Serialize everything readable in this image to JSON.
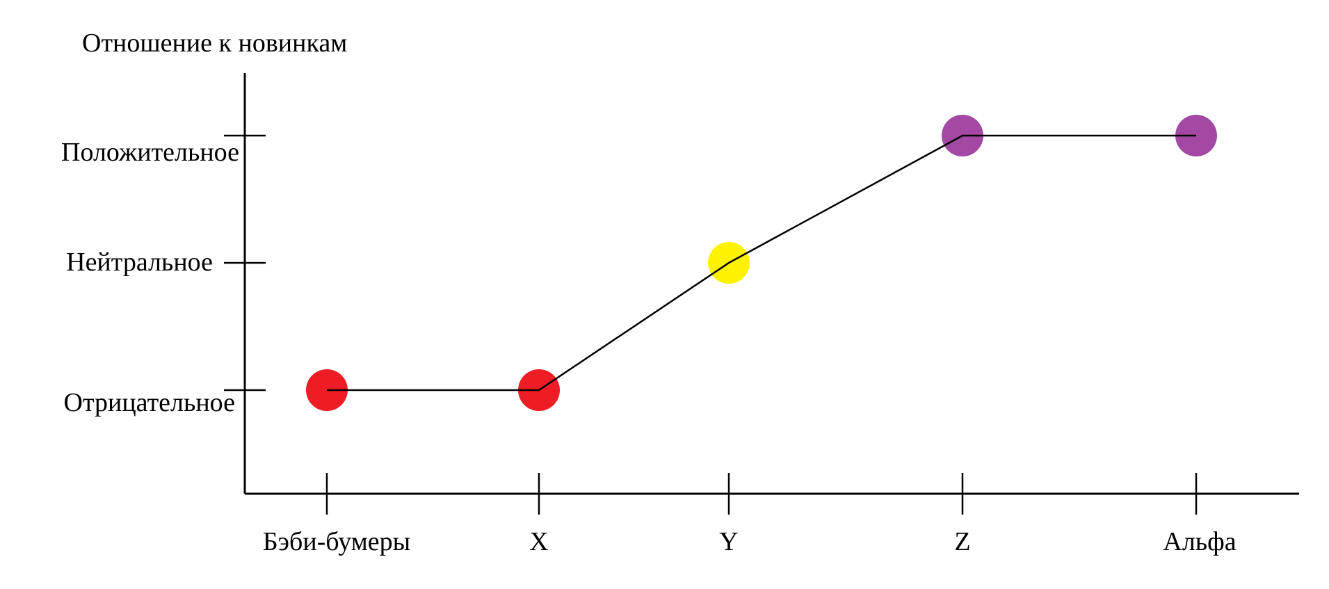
{
  "chart_data": {
    "type": "line",
    "title": "Отношение к новинкам",
    "categories": [
      "Бэби-бумеры",
      "X",
      "Y",
      "Z",
      "Альфа"
    ],
    "y_levels": [
      "Отрицательное",
      "Нейтральное",
      "Положительное"
    ],
    "values": [
      0,
      0,
      1,
      2,
      2
    ],
    "point_colors": [
      "#ee1c24",
      "#ee1c24",
      "#fff200",
      "#a349a4",
      "#a349a4"
    ],
    "line_color": "#000000"
  }
}
